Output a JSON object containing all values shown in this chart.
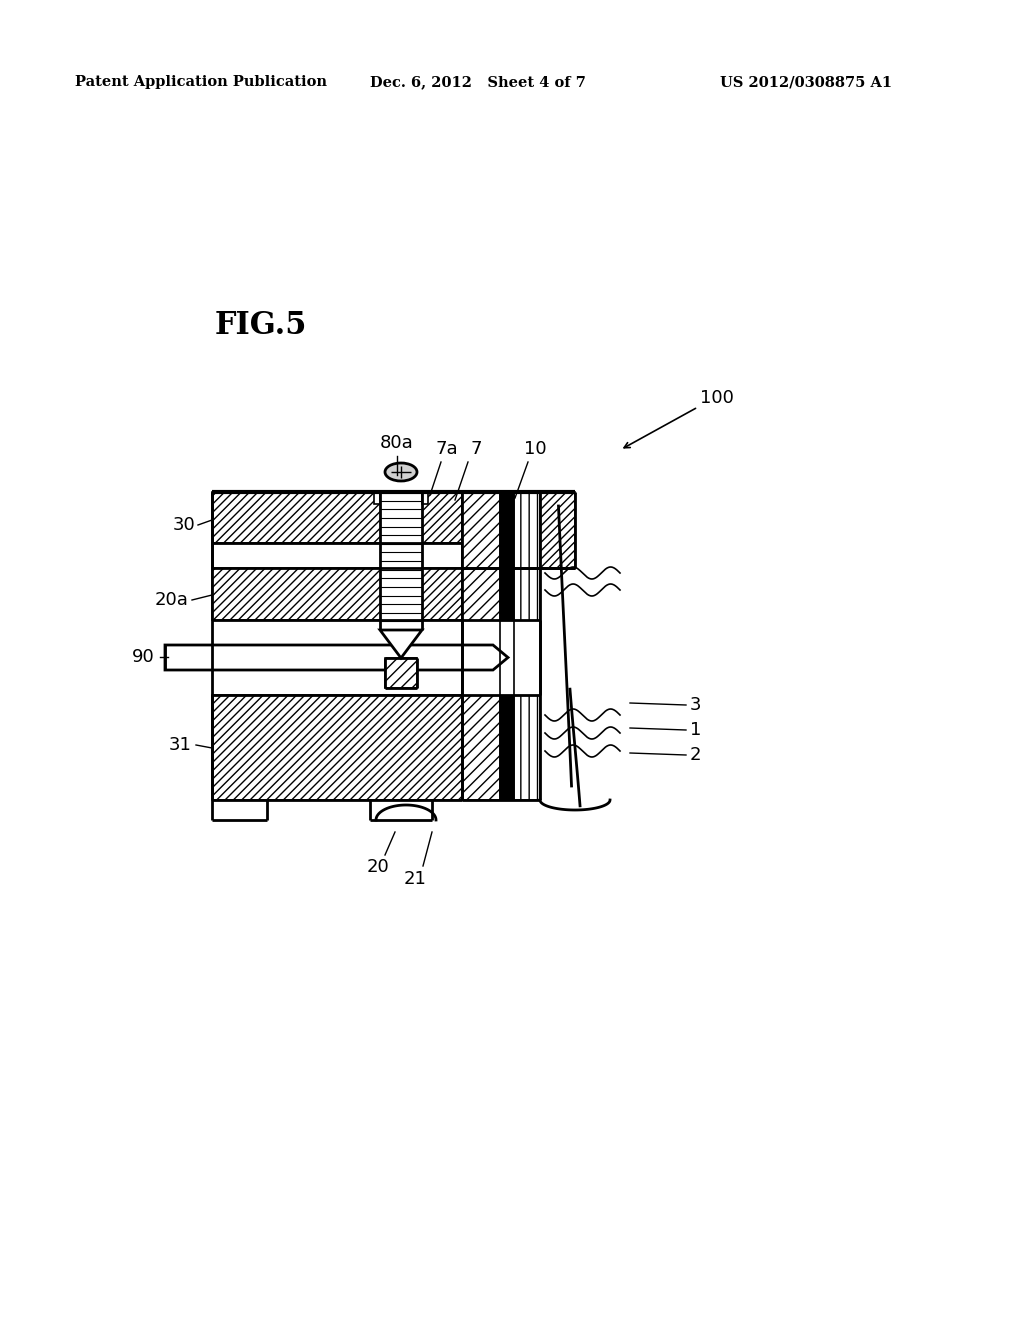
{
  "header_left": "Patent Application Publication",
  "header_mid": "Dec. 6, 2012   Sheet 4 of 7",
  "header_right": "US 2012/0308875 A1",
  "fig_label": "FIG.5",
  "bg_color": "#ffffff"
}
